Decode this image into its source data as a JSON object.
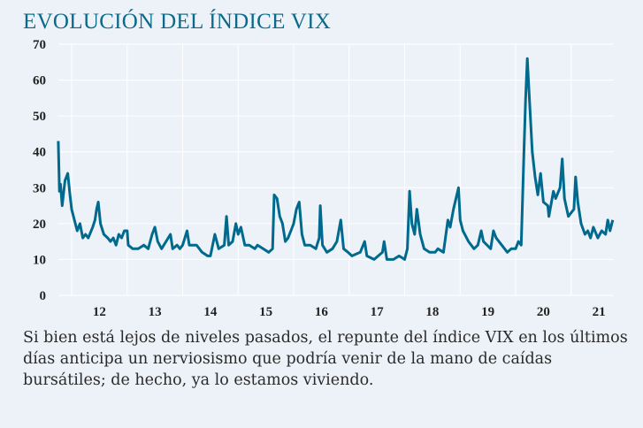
{
  "title": "EVOLUCIÓN DEL ÍNDICE VIX",
  "caption": "Si bien está lejos de niveles pasados, el repunte del índice VIX en los últimos días anticipa un nerviosismo que podría venir de la mano de caídas bursátiles; de hecho, ya lo estamos viviendo.",
  "colors": {
    "line": "#006a8e",
    "background": "#edf2f8",
    "grid": "#ffffff",
    "title": "#0b6a8c"
  },
  "chart_data": {
    "type": "line",
    "title": "EVOLUCIÓN DEL ÍNDICE VIX",
    "xlabel": "",
    "ylabel": "",
    "ylim": [
      0,
      70
    ],
    "xlim": [
      2011.76,
      2021.75
    ],
    "grid": true,
    "yticks": [
      "0",
      "10",
      "20",
      "30",
      "40",
      "50",
      "60",
      "70"
    ],
    "xticks": [
      "12",
      "13",
      "14",
      "15",
      "16",
      "17",
      "18",
      "19",
      "20",
      "21"
    ],
    "series": [
      {
        "x": [
          2011.76,
          2011.78,
          2011.8,
          2011.83,
          2011.88,
          2011.93,
          2011.97,
          2012.0,
          2012.05,
          2012.1,
          2012.15,
          2012.2,
          2012.25,
          2012.3,
          2012.38,
          2012.42,
          2012.45,
          2012.48,
          2012.52,
          2012.58,
          2012.65,
          2012.7,
          2012.75,
          2012.8,
          2012.85,
          2012.9,
          2012.95,
          2013.0,
          2013.02,
          2013.1,
          2013.2,
          2013.3,
          2013.38,
          2013.45,
          2013.5,
          2013.55,
          2013.62,
          2013.7,
          2013.78,
          2013.82,
          2013.9,
          2013.95,
          2014.0,
          2014.08,
          2014.12,
          2014.25,
          2014.35,
          2014.45,
          2014.5,
          2014.58,
          2014.65,
          2014.75,
          2014.79,
          2014.83,
          2014.9,
          2014.96,
          2015.0,
          2015.05,
          2015.12,
          2015.2,
          2015.3,
          2015.35,
          2015.45,
          2015.55,
          2015.62,
          2015.65,
          2015.7,
          2015.75,
          2015.8,
          2015.85,
          2015.9,
          2015.95,
          2016.0,
          2016.05,
          2016.1,
          2016.15,
          2016.2,
          2016.3,
          2016.4,
          2016.46,
          2016.48,
          2016.52,
          2016.6,
          2016.7,
          2016.78,
          2016.85,
          2016.9,
          2016.98,
          2017.05,
          2017.2,
          2017.28,
          2017.32,
          2017.45,
          2017.6,
          2017.63,
          2017.68,
          2017.8,
          2017.9,
          2018.0,
          2018.05,
          2018.09,
          2018.13,
          2018.18,
          2018.22,
          2018.28,
          2018.35,
          2018.45,
          2018.55,
          2018.6,
          2018.7,
          2018.78,
          2018.82,
          2018.88,
          2018.97,
          2019.0,
          2019.05,
          2019.15,
          2019.25,
          2019.32,
          2019.38,
          2019.42,
          2019.55,
          2019.6,
          2019.65,
          2019.75,
          2019.85,
          2019.92,
          2020.0,
          2020.05,
          2020.1,
          2020.15,
          2020.18,
          2020.21,
          2020.24,
          2020.3,
          2020.35,
          2020.4,
          2020.45,
          2020.5,
          2020.58,
          2020.6,
          2020.68,
          2020.72,
          2020.8,
          2020.84,
          2020.88,
          2020.95,
          2021.05,
          2021.08,
          2021.12,
          2021.18,
          2021.25,
          2021.3,
          2021.35,
          2021.4,
          2021.48,
          2021.55,
          2021.62,
          2021.66,
          2021.7,
          2021.75
        ],
        "y": [
          43,
          29,
          31,
          25,
          32,
          34,
          28,
          24,
          21,
          18,
          20,
          16,
          17,
          16,
          19,
          21,
          24,
          26,
          20,
          17,
          16,
          15,
          16,
          14,
          17,
          16,
          18,
          18,
          14,
          13,
          13,
          14,
          13,
          17,
          19,
          15,
          13,
          15,
          17,
          13,
          14,
          13,
          14,
          18,
          14,
          14,
          12,
          11,
          11,
          17,
          13,
          14,
          22,
          14,
          15,
          20,
          17,
          19,
          14,
          14,
          13,
          14,
          13,
          12,
          13,
          28,
          27,
          22,
          20,
          15,
          16,
          18,
          20,
          24,
          26,
          17,
          14,
          14,
          13,
          16,
          25,
          14,
          12,
          13,
          15,
          21,
          13,
          12,
          11,
          12,
          15,
          11,
          10,
          12,
          15,
          10,
          10,
          11,
          10,
          13,
          29,
          20,
          17,
          24,
          17,
          13,
          12,
          12,
          13,
          12,
          21,
          19,
          24,
          30,
          21,
          18,
          15,
          13,
          14,
          18,
          15,
          13,
          18,
          16,
          14,
          12,
          13,
          13,
          15,
          14,
          40,
          55,
          66,
          57,
          40,
          33,
          28,
          34,
          26,
          25,
          22,
          29,
          27,
          30,
          38,
          27,
          22,
          24,
          33,
          26,
          20,
          17,
          18,
          16,
          19,
          16,
          18,
          17,
          21,
          18,
          21
        ]
      }
    ]
  }
}
